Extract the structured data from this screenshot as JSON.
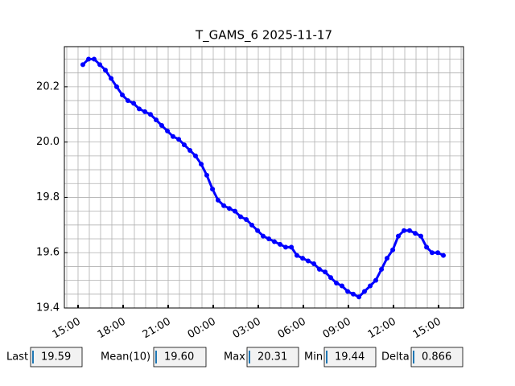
{
  "chart_data": {
    "type": "line",
    "title": "T_GAMS_6 2025-11-17",
    "x": [
      15.32,
      15.7,
      16.07,
      16.45,
      16.82,
      17.2,
      17.57,
      17.95,
      18.32,
      18.7,
      19.07,
      19.45,
      19.82,
      20.2,
      20.57,
      20.95,
      21.32,
      21.7,
      22.07,
      22.45,
      22.82,
      23.2,
      23.57,
      23.95,
      24.32,
      24.7,
      25.07,
      25.45,
      25.82,
      26.2,
      26.57,
      26.95,
      27.32,
      27.7,
      28.07,
      28.45,
      28.82,
      29.2,
      29.57,
      29.95,
      30.32,
      30.7,
      31.07,
      31.45,
      31.82,
      32.2,
      32.57,
      32.95,
      33.32,
      33.7,
      34.07,
      34.45,
      34.82,
      35.2,
      35.57,
      35.95,
      36.32,
      36.7,
      37.07,
      37.45,
      37.82,
      38.2,
      38.57,
      38.95,
      39.32
    ],
    "series": [
      {
        "color": "#0000ff",
        "values": [
          20.28,
          20.3,
          20.3,
          20.28,
          20.26,
          20.23,
          20.2,
          20.17,
          20.15,
          20.14,
          20.12,
          20.11,
          20.1,
          20.08,
          20.06,
          20.04,
          20.02,
          20.01,
          19.99,
          19.97,
          19.95,
          19.92,
          19.88,
          19.83,
          19.79,
          19.77,
          19.76,
          19.75,
          19.73,
          19.72,
          19.7,
          19.68,
          19.66,
          19.65,
          19.64,
          19.63,
          19.62,
          19.62,
          19.59,
          19.58,
          19.57,
          19.56,
          19.54,
          19.53,
          19.51,
          19.49,
          19.48,
          19.46,
          19.45,
          19.44,
          19.46,
          19.48,
          19.5,
          19.54,
          19.58,
          19.61,
          19.66,
          19.68,
          19.68,
          19.67,
          19.66,
          19.62,
          19.6,
          19.6,
          19.59
        ]
      }
    ],
    "xlim": [
      14.09,
      40.66
    ],
    "ylim": [
      19.4,
      20.345
    ],
    "xticks": [
      {
        "value": 15,
        "label": "15:00"
      },
      {
        "value": 18,
        "label": "18:00"
      },
      {
        "value": 21,
        "label": "21:00"
      },
      {
        "value": 24,
        "label": "00:00"
      },
      {
        "value": 27,
        "label": "03:00"
      },
      {
        "value": 30,
        "label": "06:00"
      },
      {
        "value": 33,
        "label": "09:00"
      },
      {
        "value": 36,
        "label": "12:00"
      },
      {
        "value": 39,
        "label": "15:00"
      }
    ],
    "yticks": [
      19.4,
      19.6,
      19.8,
      {
        "value": 20.0,
        "label": "20.0"
      },
      20.2
    ],
    "xgrid": [
      14.25,
      15,
      15.75,
      16.5,
      17.25,
      18,
      18.75,
      19.5,
      20.25,
      21,
      21.75,
      22.5,
      23.25,
      24,
      24.75,
      25.5,
      26.25,
      27,
      27.75,
      28.5,
      29.25,
      30,
      30.75,
      31.5,
      32.25,
      33,
      33.75,
      34.5,
      35.25,
      36,
      36.75,
      37.5,
      38.25,
      39,
      39.75,
      40.5
    ],
    "ygrid": [
      19.45,
      19.5,
      19.55,
      19.6,
      19.65,
      19.7,
      19.75,
      19.8,
      19.85,
      19.9,
      19.95,
      20.0,
      20.05,
      20.1,
      20.15,
      20.2,
      20.25,
      20.3
    ],
    "grid": true
  },
  "stats": [
    {
      "label": "Last",
      "value": "19.59"
    },
    {
      "label": "Mean(10)",
      "value": "19.60"
    },
    {
      "label": "Max",
      "value": "20.31"
    },
    {
      "label": "Min",
      "value": "19.44"
    },
    {
      "label": "Delta",
      "value": "0.866"
    }
  ]
}
